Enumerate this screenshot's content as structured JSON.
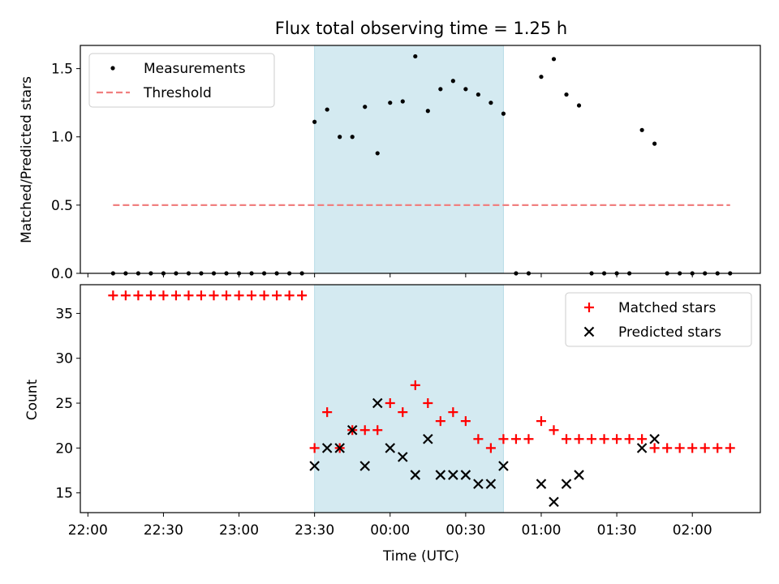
{
  "chart_data": [
    {
      "type": "scatter",
      "title": "Flux total observing time = 1.25 h",
      "ylabel": "Matched/Predicted stars",
      "xlabel": "",
      "xlim": [
        "21:57",
        "02:27"
      ],
      "ylim": [
        0,
        1.67
      ],
      "yticks": [
        "0.0",
        "0.5",
        "1.0",
        "1.5"
      ],
      "yticks_values": [
        0,
        0.5,
        1.0,
        1.5
      ],
      "shaded_span": [
        "23:30",
        "00:45"
      ],
      "legend": {
        "placement": "top-left",
        "entries": [
          "Measurements",
          "Threshold"
        ]
      },
      "series": [
        {
          "name": "Measurements",
          "marker": "dot",
          "color": "#000000",
          "points": [
            [
              "22:10",
              0
            ],
            [
              "22:15",
              0
            ],
            [
              "22:20",
              0
            ],
            [
              "22:25",
              0
            ],
            [
              "22:30",
              0
            ],
            [
              "22:35",
              0
            ],
            [
              "22:40",
              0
            ],
            [
              "22:45",
              0
            ],
            [
              "22:50",
              0
            ],
            [
              "22:55",
              0
            ],
            [
              "23:00",
              0
            ],
            [
              "23:05",
              0
            ],
            [
              "23:10",
              0
            ],
            [
              "23:15",
              0
            ],
            [
              "23:20",
              0
            ],
            [
              "23:25",
              0
            ],
            [
              "23:30",
              1.11
            ],
            [
              "23:35",
              1.2
            ],
            [
              "23:40",
              1.0
            ],
            [
              "23:45",
              1.0
            ],
            [
              "23:50",
              1.22
            ],
            [
              "23:55",
              0.88
            ],
            [
              "00:00",
              1.25
            ],
            [
              "00:05",
              1.26
            ],
            [
              "00:10",
              1.59
            ],
            [
              "00:15",
              1.19
            ],
            [
              "00:20",
              1.35
            ],
            [
              "00:25",
              1.41
            ],
            [
              "00:30",
              1.35
            ],
            [
              "00:35",
              1.31
            ],
            [
              "00:40",
              1.25
            ],
            [
              "00:45",
              1.17
            ],
            [
              "00:50",
              0
            ],
            [
              "00:55",
              0
            ],
            [
              "01:00",
              1.44
            ],
            [
              "01:05",
              1.57
            ],
            [
              "01:10",
              1.31
            ],
            [
              "01:15",
              1.23
            ],
            [
              "01:20",
              0
            ],
            [
              "01:25",
              0
            ],
            [
              "01:30",
              0
            ],
            [
              "01:35",
              0
            ],
            [
              "01:40",
              1.05
            ],
            [
              "01:45",
              0.95
            ],
            [
              "01:50",
              0
            ],
            [
              "01:55",
              0
            ],
            [
              "02:00",
              0
            ],
            [
              "02:05",
              0
            ],
            [
              "02:10",
              0
            ],
            [
              "02:15",
              0
            ]
          ]
        },
        {
          "name": "Threshold",
          "marker": "dashed-line",
          "color": "#f08080",
          "points": [
            [
              "22:10",
              0.5
            ],
            [
              "02:15",
              0.5
            ]
          ]
        }
      ]
    },
    {
      "type": "scatter",
      "title": "",
      "xlabel": "Time (UTC)",
      "ylabel": "Count",
      "xlim": [
        "21:57",
        "02:27"
      ],
      "ylim": [
        12.8,
        38.2
      ],
      "xticks": [
        "22:00",
        "22:30",
        "23:00",
        "23:30",
        "00:00",
        "00:30",
        "01:00",
        "01:30",
        "02:00"
      ],
      "yticks": [
        "15",
        "20",
        "25",
        "30",
        "35"
      ],
      "yticks_values": [
        15,
        20,
        25,
        30,
        35
      ],
      "shaded_span": [
        "23:30",
        "00:45"
      ],
      "legend": {
        "placement": "top-right",
        "entries": [
          "Matched stars",
          "Predicted stars"
        ]
      },
      "series": [
        {
          "name": "Matched stars",
          "marker": "plus",
          "color": "#ff0000",
          "points": [
            [
              "22:10",
              37
            ],
            [
              "22:15",
              37
            ],
            [
              "22:20",
              37
            ],
            [
              "22:25",
              37
            ],
            [
              "22:30",
              37
            ],
            [
              "22:35",
              37
            ],
            [
              "22:40",
              37
            ],
            [
              "22:45",
              37
            ],
            [
              "22:50",
              37
            ],
            [
              "22:55",
              37
            ],
            [
              "23:00",
              37
            ],
            [
              "23:05",
              37
            ],
            [
              "23:10",
              37
            ],
            [
              "23:15",
              37
            ],
            [
              "23:20",
              37
            ],
            [
              "23:25",
              37
            ],
            [
              "23:30",
              20
            ],
            [
              "23:35",
              24
            ],
            [
              "23:40",
              20
            ],
            [
              "23:45",
              22
            ],
            [
              "23:50",
              22
            ],
            [
              "23:55",
              22
            ],
            [
              "00:00",
              25
            ],
            [
              "00:05",
              24
            ],
            [
              "00:10",
              27
            ],
            [
              "00:15",
              25
            ],
            [
              "00:20",
              23
            ],
            [
              "00:25",
              24
            ],
            [
              "00:30",
              23
            ],
            [
              "00:35",
              21
            ],
            [
              "00:40",
              20
            ],
            [
              "00:45",
              21
            ],
            [
              "00:50",
              21
            ],
            [
              "00:55",
              21
            ],
            [
              "01:00",
              23
            ],
            [
              "01:05",
              22
            ],
            [
              "01:10",
              21
            ],
            [
              "01:15",
              21
            ],
            [
              "01:20",
              21
            ],
            [
              "01:25",
              21
            ],
            [
              "01:30",
              21
            ],
            [
              "01:35",
              21
            ],
            [
              "01:40",
              21
            ],
            [
              "01:45",
              20
            ],
            [
              "01:50",
              20
            ],
            [
              "01:55",
              20
            ],
            [
              "02:00",
              20
            ],
            [
              "02:05",
              20
            ],
            [
              "02:10",
              20
            ],
            [
              "02:15",
              20
            ]
          ]
        },
        {
          "name": "Predicted stars",
          "marker": "x",
          "color": "#000000",
          "points": [
            [
              "23:30",
              18
            ],
            [
              "23:35",
              20
            ],
            [
              "23:40",
              20
            ],
            [
              "23:45",
              22
            ],
            [
              "23:50",
              18
            ],
            [
              "23:55",
              25
            ],
            [
              "00:00",
              20
            ],
            [
              "00:05",
              19
            ],
            [
              "00:10",
              17
            ],
            [
              "00:15",
              21
            ],
            [
              "00:20",
              17
            ],
            [
              "00:25",
              17
            ],
            [
              "00:30",
              17
            ],
            [
              "00:35",
              16
            ],
            [
              "00:40",
              16
            ],
            [
              "00:45",
              18
            ],
            [
              "01:00",
              16
            ],
            [
              "01:05",
              14
            ],
            [
              "01:10",
              16
            ],
            [
              "01:15",
              17
            ],
            [
              "01:40",
              20
            ],
            [
              "01:45",
              21
            ]
          ]
        }
      ]
    }
  ],
  "colors": {
    "shade": "#d4eaf1",
    "shade_edge": "#b8dce6",
    "threshold": "#f08080",
    "matched": "#ff0000",
    "predicted": "#000000"
  }
}
